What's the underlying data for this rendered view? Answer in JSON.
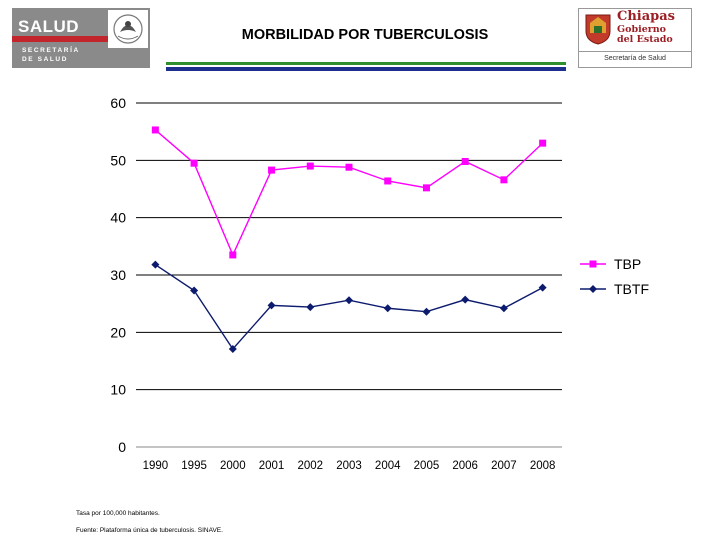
{
  "header": {
    "title": "MORBILIDAD POR TUBERCULOSIS",
    "left_logo": {
      "word": "SALUD",
      "line1": "SECRETARÍA",
      "line2": "DE SALUD"
    },
    "right_logo": {
      "name": "Chiapas",
      "line1": "Gobierno",
      "line2": "del Estado",
      "dept": "Secretaría de Salud"
    }
  },
  "colors": {
    "tbp": "#ff00ff",
    "tbtf": "#0d1b6e",
    "rule_green": "#2f8f2f",
    "rule_blue": "#1e2e8c"
  },
  "chart_data": {
    "type": "line",
    "categories": [
      "1990",
      "1995",
      "2000",
      "2001",
      "2002",
      "2003",
      "2004",
      "2005",
      "2006",
      "2007",
      "2008"
    ],
    "series": [
      {
        "name": "TBP",
        "values": [
          55.3,
          49.5,
          33.5,
          48.3,
          49.0,
          48.8,
          46.4,
          45.2,
          49.8,
          46.6,
          53.0
        ]
      },
      {
        "name": "TBTF",
        "values": [
          31.8,
          27.3,
          17.1,
          24.7,
          24.4,
          25.6,
          24.2,
          23.6,
          25.7,
          24.2,
          27.8
        ]
      }
    ],
    "ylim": [
      0,
      60
    ],
    "yticks": [
      "0",
      "10",
      "20",
      "30",
      "40",
      "50",
      "60"
    ],
    "grid_y": true,
    "legend": "right"
  },
  "footnotes": {
    "rate": "Tasa por 100,000 habitantes.",
    "source": "Fuente: Plataforma única de tuberculosis. SINAVE."
  }
}
